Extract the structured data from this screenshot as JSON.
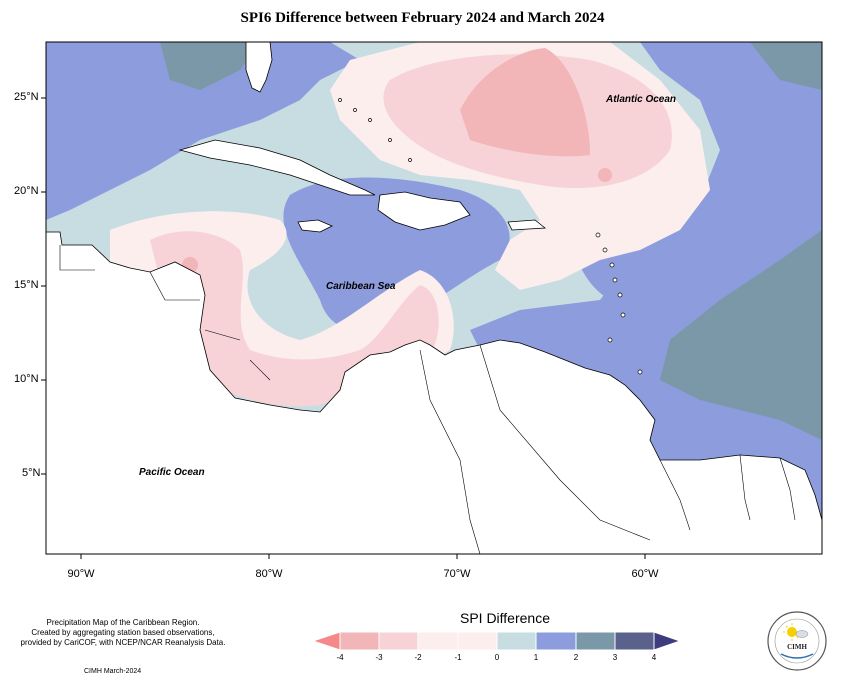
{
  "title": "SPI6 Difference between February 2024 and March 2024",
  "map": {
    "lat_ticks": [
      "25°N",
      "20°N",
      "15°N",
      "10°N",
      "5°N"
    ],
    "lon_ticks": [
      "90°W",
      "80°W",
      "70°W",
      "60°W"
    ],
    "labels": {
      "atlantic": "Atlantic Ocean",
      "caribbean": "Caribbean Sea",
      "pacific": "Pacific Ocean"
    }
  },
  "footer": {
    "line1": "Precipitation Map of the Caribbean Region.",
    "line2": "Created by aggregating station based observations,",
    "line3": "provided by CariCOF, with NCEP/NCAR Reanalysis Data.",
    "credit": "CIMH March-2024"
  },
  "legend": {
    "title": "SPI Difference",
    "ticks": [
      "-4",
      "-3",
      "-2",
      "-1",
      "0",
      "1",
      "2",
      "3",
      "4"
    ],
    "colors": [
      "#f4888b",
      "#f2b5b8",
      "#f7d3d8",
      "#fdeeee",
      "#c8dde2",
      "#8c9cdc",
      "#7b98a8",
      "#5a628c",
      "#3f3c7e"
    ]
  },
  "logo": {
    "text": "CIMH",
    "icon": "sun-cloud-icon"
  }
}
